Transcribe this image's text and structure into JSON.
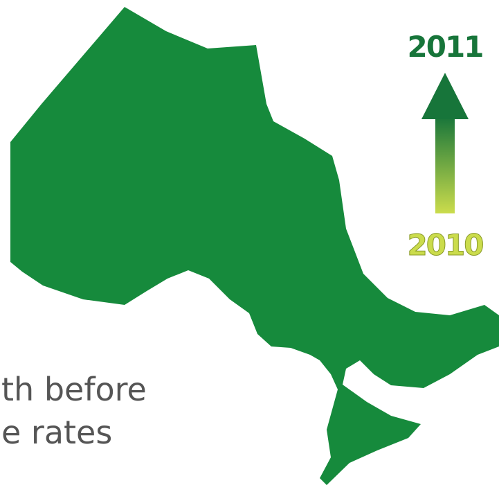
{
  "arrow": {
    "top_label": "2011",
    "bottom_label": "2010"
  },
  "text": {
    "lines": [
      "th before",
      "e rates"
    ]
  }
}
